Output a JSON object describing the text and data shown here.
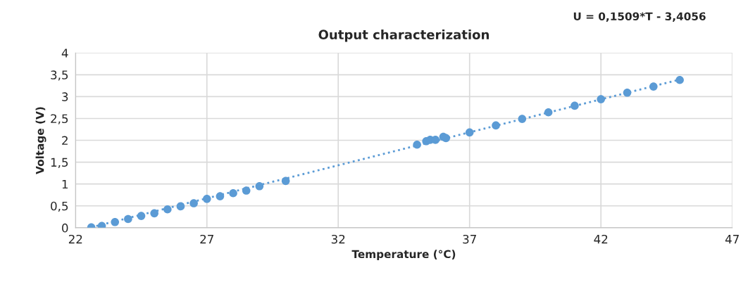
{
  "chart_data": {
    "type": "scatter",
    "title": "Output characterization",
    "xlabel": "Temperature (°C)",
    "ylabel": "Voltage (V)",
    "annotations": [
      "U = 0,1509*T - 3,4056"
    ],
    "xlim": [
      22,
      47
    ],
    "xticks": [
      22,
      27,
      32,
      37,
      42,
      47
    ],
    "ylim": [
      0,
      4
    ],
    "yticks": [
      0,
      {
        "value": 0.5,
        "label": "0,5"
      },
      1,
      {
        "value": 1.5,
        "label": "1,5"
      },
      2,
      {
        "value": 2.5,
        "label": "2,5"
      },
      3,
      {
        "value": 3.5,
        "label": "3,5"
      },
      4
    ],
    "grid": true,
    "legend": false,
    "series": [
      {
        "type": "line",
        "color": "#5b9bd5",
        "line_style": "dotted",
        "marker": "none",
        "x": [
          22.6,
          45.0
        ],
        "values": [
          0.01,
          3.39
        ]
      },
      {
        "color": "#5b9bd5",
        "marker": "circle",
        "x": [
          22.6,
          23.0,
          23.5,
          24.0,
          24.5,
          25.0,
          25.5,
          26.0,
          26.5,
          27.0,
          27.5,
          28.0,
          28.5,
          29.0,
          30.0,
          35.0,
          35.35,
          35.5,
          35.7,
          36.0,
          36.1,
          37.0,
          38.0,
          39.0,
          40.0,
          41.0,
          42.0,
          43.0,
          44.0,
          45.0
        ],
        "values": [
          0.01,
          0.04,
          0.13,
          0.2,
          0.27,
          0.33,
          0.42,
          0.49,
          0.56,
          0.66,
          0.72,
          0.79,
          0.85,
          0.95,
          1.07,
          1.9,
          1.98,
          2.01,
          2.01,
          2.08,
          2.05,
          2.18,
          2.34,
          2.49,
          2.64,
          2.79,
          2.94,
          3.09,
          3.23,
          3.38
        ]
      }
    ]
  }
}
